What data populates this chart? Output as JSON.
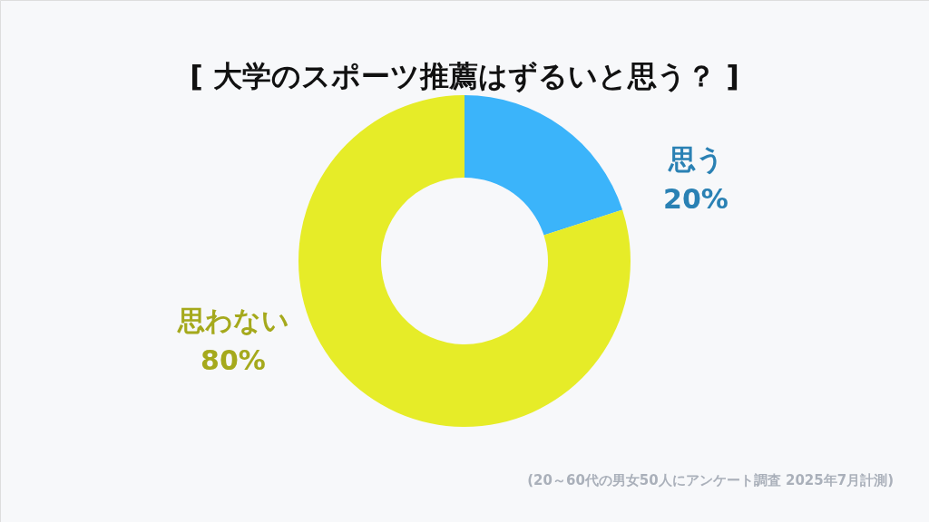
{
  "chart_data": {
    "type": "donut",
    "title": "[ 大学のスポーツ推薦はずるいと思う？ ]",
    "categories": [
      "思う",
      "思わない"
    ],
    "values": [
      20,
      80
    ],
    "colors": [
      "#3bb4fa",
      "#e6ec28"
    ],
    "value_labels": [
      "20%",
      "80%"
    ],
    "annotations": [
      "(20～60代の男女50人にアンケート調査 2025年7月計測)"
    ]
  }
}
